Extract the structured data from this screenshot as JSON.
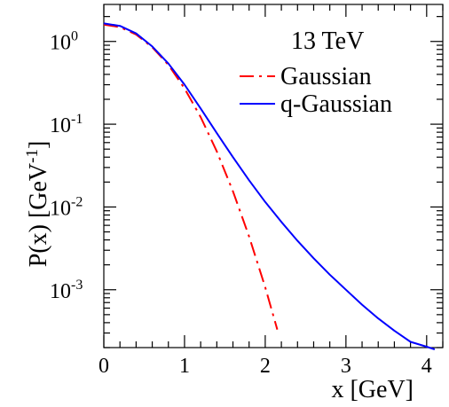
{
  "chart_data": {
    "type": "line",
    "annotation": "13 TeV",
    "xlabel": "x [GeV]",
    "ylabel": "P(x) [GeV",
    "ylabel_sup": "-1",
    "ylabel_close": "]",
    "x_scale": "linear",
    "y_scale": "log",
    "xlim": [
      0,
      4.2
    ],
    "ylim": [
      0.0002,
      2.8
    ],
    "grid": false,
    "legend_position": "top-right",
    "x_ticks": [
      {
        "value": 0,
        "label": "0"
      },
      {
        "value": 1,
        "label": "1"
      },
      {
        "value": 2,
        "label": "2"
      },
      {
        "value": 3,
        "label": "3"
      },
      {
        "value": 4,
        "label": "4"
      }
    ],
    "y_ticks": [
      {
        "value": 1,
        "base": "10",
        "exp": "0"
      },
      {
        "value": 0.1,
        "base": "10",
        "exp": "-1"
      },
      {
        "value": 0.01,
        "base": "10",
        "exp": "-2"
      },
      {
        "value": 0.001,
        "base": "10",
        "exp": "-3"
      }
    ],
    "series": [
      {
        "name": "Gaussian",
        "color": "#ff0000",
        "style": "dash-dot",
        "x": [
          0,
          0.2,
          0.4,
          0.6,
          0.8,
          1.0,
          1.2,
          1.4,
          1.6,
          1.8,
          2.0,
          2.15
        ],
        "y": [
          1.6,
          1.49,
          1.21,
          0.85,
          0.52,
          0.27,
          0.122,
          0.047,
          0.0155,
          0.0044,
          0.00107,
          0.00033
        ]
      },
      {
        "name": "q-Gaussian",
        "color": "#0000ff",
        "style": "solid",
        "x": [
          0,
          0.2,
          0.4,
          0.6,
          0.8,
          1.0,
          1.2,
          1.4,
          1.6,
          1.8,
          2.0,
          2.2,
          2.4,
          2.6,
          2.8,
          3.0,
          3.2,
          3.4,
          3.6,
          3.8,
          4.0,
          4.1
        ],
        "y": [
          1.65,
          1.54,
          1.25,
          0.87,
          0.54,
          0.3,
          0.155,
          0.078,
          0.04,
          0.021,
          0.0115,
          0.0066,
          0.0039,
          0.0024,
          0.00152,
          0.001,
          0.00066,
          0.00045,
          0.00032,
          0.000235,
          0.000205,
          0.00019
        ]
      }
    ]
  }
}
